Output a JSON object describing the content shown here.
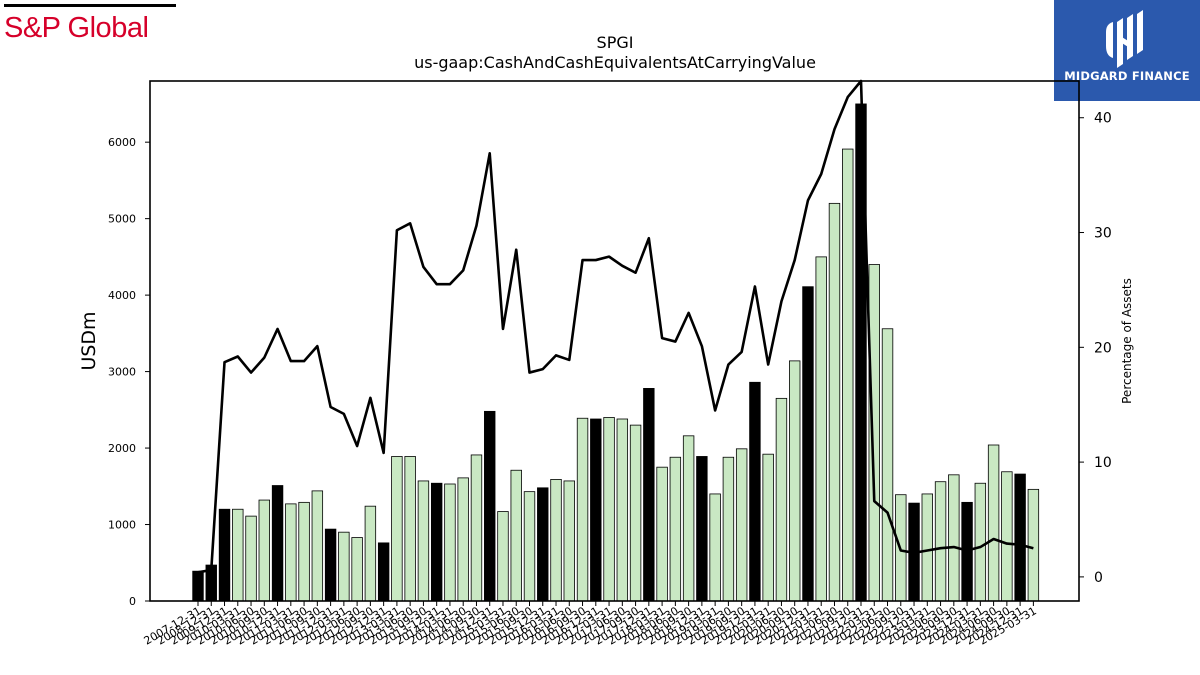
{
  "logos": {
    "left": "S&P Global",
    "right": "MIDGARD FINANCE"
  },
  "colors": {
    "brand_red": "#d6002a",
    "midgard_blue": "#2b59ad",
    "bar_light": "#c9e8c3",
    "bar_dark": "#000000",
    "line": "#000000"
  },
  "chart_data": {
    "type": "bar",
    "title": "SPGI",
    "subtitle": "us-gaap:CashAndCashEquivalentsAtCarryingValue",
    "ylabel": "USDm",
    "y2label": "Percentage of Assets",
    "ylim": [
      0,
      6800
    ],
    "yticks": [
      0,
      1000,
      2000,
      3000,
      4000,
      5000,
      6000
    ],
    "y2lim": [
      -2.1,
      43.2
    ],
    "y2ticks": [
      0,
      10,
      20,
      30,
      40
    ],
    "x": [
      "2007-12-31",
      "2008-12-31",
      "2009-12-31",
      "2010-03-31",
      "2010-06-30",
      "2010-09-30",
      "2010-12-31",
      "2011-03-31",
      "2011-06-30",
      "2011-09-30",
      "2011-12-31",
      "2012-03-31",
      "2012-06-30",
      "2012-09-30",
      "2012-12-31",
      "2013-03-31",
      "2013-06-30",
      "2013-09-30",
      "2013-12-31",
      "2014-03-31",
      "2014-06-30",
      "2014-09-30",
      "2014-12-31",
      "2015-03-31",
      "2015-06-30",
      "2015-09-30",
      "2015-12-31",
      "2016-03-31",
      "2016-06-30",
      "2016-09-30",
      "2016-12-31",
      "2017-03-31",
      "2017-06-30",
      "2017-09-30",
      "2017-12-31",
      "2018-03-31",
      "2018-06-30",
      "2018-09-30",
      "2018-12-31",
      "2019-03-31",
      "2019-06-30",
      "2019-09-30",
      "2019-12-31",
      "2020-03-31",
      "2020-06-30",
      "2020-09-30",
      "2020-12-31",
      "2021-03-31",
      "2021-06-30",
      "2021-09-30",
      "2021-12-31",
      "2022-03-31",
      "2022-06-30",
      "2022-09-30",
      "2022-12-31",
      "2023-03-31",
      "2023-06-30",
      "2023-09-30",
      "2023-12-31",
      "2024-03-31",
      "2024-06-30",
      "2024-09-30",
      "2024-12-31",
      "2025-03-31"
    ],
    "xtick_labels": [
      "2007-12-31",
      "2008-12-31",
      "2009-12-31",
      "2010-03-31",
      "2010-06-30",
      "2010-09-30",
      "2010-12-31",
      "2011-03-31",
      "2011-06-30",
      "2011-09-30",
      "2011-12-31",
      "2012-03-31",
      "2012-06-30",
      "2012-09-30",
      "2012-12-31",
      "2013-03-31",
      "2013-06-30",
      "2013-09-30",
      "2013-12-31",
      "2014-03-31",
      "2014-06-30",
      "2014-09-30",
      "2014-12-31",
      "2015-03-31",
      "2015-06-30",
      "2015-09-30",
      "2015-12-31",
      "2016-03-31",
      "2016-06-30",
      "2016-09-30",
      "2016-12-31",
      "2017-03-31",
      "2017-06-30",
      "2017-09-30",
      "2017-12-31",
      "2018-03-31",
      "2018-06-30",
      "2018-09-30",
      "2018-12-31",
      "2019-03-31",
      "2019-06-30",
      "2019-09-30",
      "2019-12-31",
      "2020-03-31",
      "2020-06-30",
      "2020-09-30",
      "2020-12-31",
      "2021-03-31",
      "2021-06-30",
      "2021-09-30",
      "2021-12-31",
      "2022-03-31",
      "2022-06-30",
      "2022-09-30",
      "2022-12-31",
      "2023-03-31",
      "2023-06-30",
      "2023-09-30",
      "2023-12-31",
      "2024-03-31",
      "2024-06-30",
      "2024-09-30",
      "2024-12-31",
      "2025-03-31"
    ],
    "annual": [
      true,
      true,
      true,
      false,
      false,
      false,
      true,
      false,
      false,
      false,
      true,
      false,
      false,
      false,
      true,
      false,
      false,
      false,
      true,
      false,
      false,
      false,
      true,
      false,
      false,
      false,
      true,
      false,
      false,
      false,
      true,
      false,
      false,
      false,
      true,
      false,
      false,
      false,
      true,
      false,
      false,
      false,
      true,
      false,
      false,
      false,
      true,
      false,
      false,
      false,
      true,
      false,
      false,
      false,
      true,
      false,
      false,
      false,
      true,
      false,
      false,
      false,
      true,
      false
    ],
    "series": [
      {
        "name": "USDm",
        "values": [
          390,
          470,
          1200,
          1200,
          1110,
          1320,
          1510,
          1270,
          1290,
          1440,
          940,
          900,
          830,
          1240,
          760,
          1890,
          1890,
          1570,
          1540,
          1530,
          1610,
          1910,
          2480,
          1170,
          1710,
          1430,
          1480,
          1590,
          1570,
          2390,
          2380,
          2400,
          2380,
          2300,
          2780,
          1750,
          1880,
          2160,
          1890,
          1400,
          1880,
          1990,
          2860,
          1920,
          2650,
          3140,
          4110,
          4500,
          5200,
          5910,
          6500,
          4400,
          3560,
          1390,
          1280,
          1400,
          1560,
          1650,
          1290,
          1540,
          2040,
          1690,
          1660,
          1460
        ]
      },
      {
        "name": "Percentage of Assets",
        "values": [
          0.4,
          0.6,
          18.7,
          19.2,
          17.8,
          19.1,
          21.6,
          18.8,
          18.8,
          20.1,
          14.8,
          14.2,
          11.4,
          15.6,
          10.8,
          30.2,
          30.8,
          27.0,
          25.5,
          25.5,
          26.7,
          30.6,
          36.9,
          21.6,
          28.5,
          17.8,
          18.1,
          19.3,
          18.9,
          27.6,
          27.6,
          27.9,
          27.1,
          26.5,
          29.5,
          20.8,
          20.5,
          23.0,
          20.1,
          14.5,
          18.5,
          19.6,
          25.3,
          18.5,
          24.0,
          27.6,
          32.8,
          35.1,
          39.0,
          41.8,
          43.2,
          6.6,
          5.6,
          2.3,
          2.1,
          2.3,
          2.5,
          2.6,
          2.3,
          2.6,
          3.3,
          2.9,
          2.8,
          2.5
        ]
      }
    ],
    "grid": false,
    "legend": "none"
  }
}
